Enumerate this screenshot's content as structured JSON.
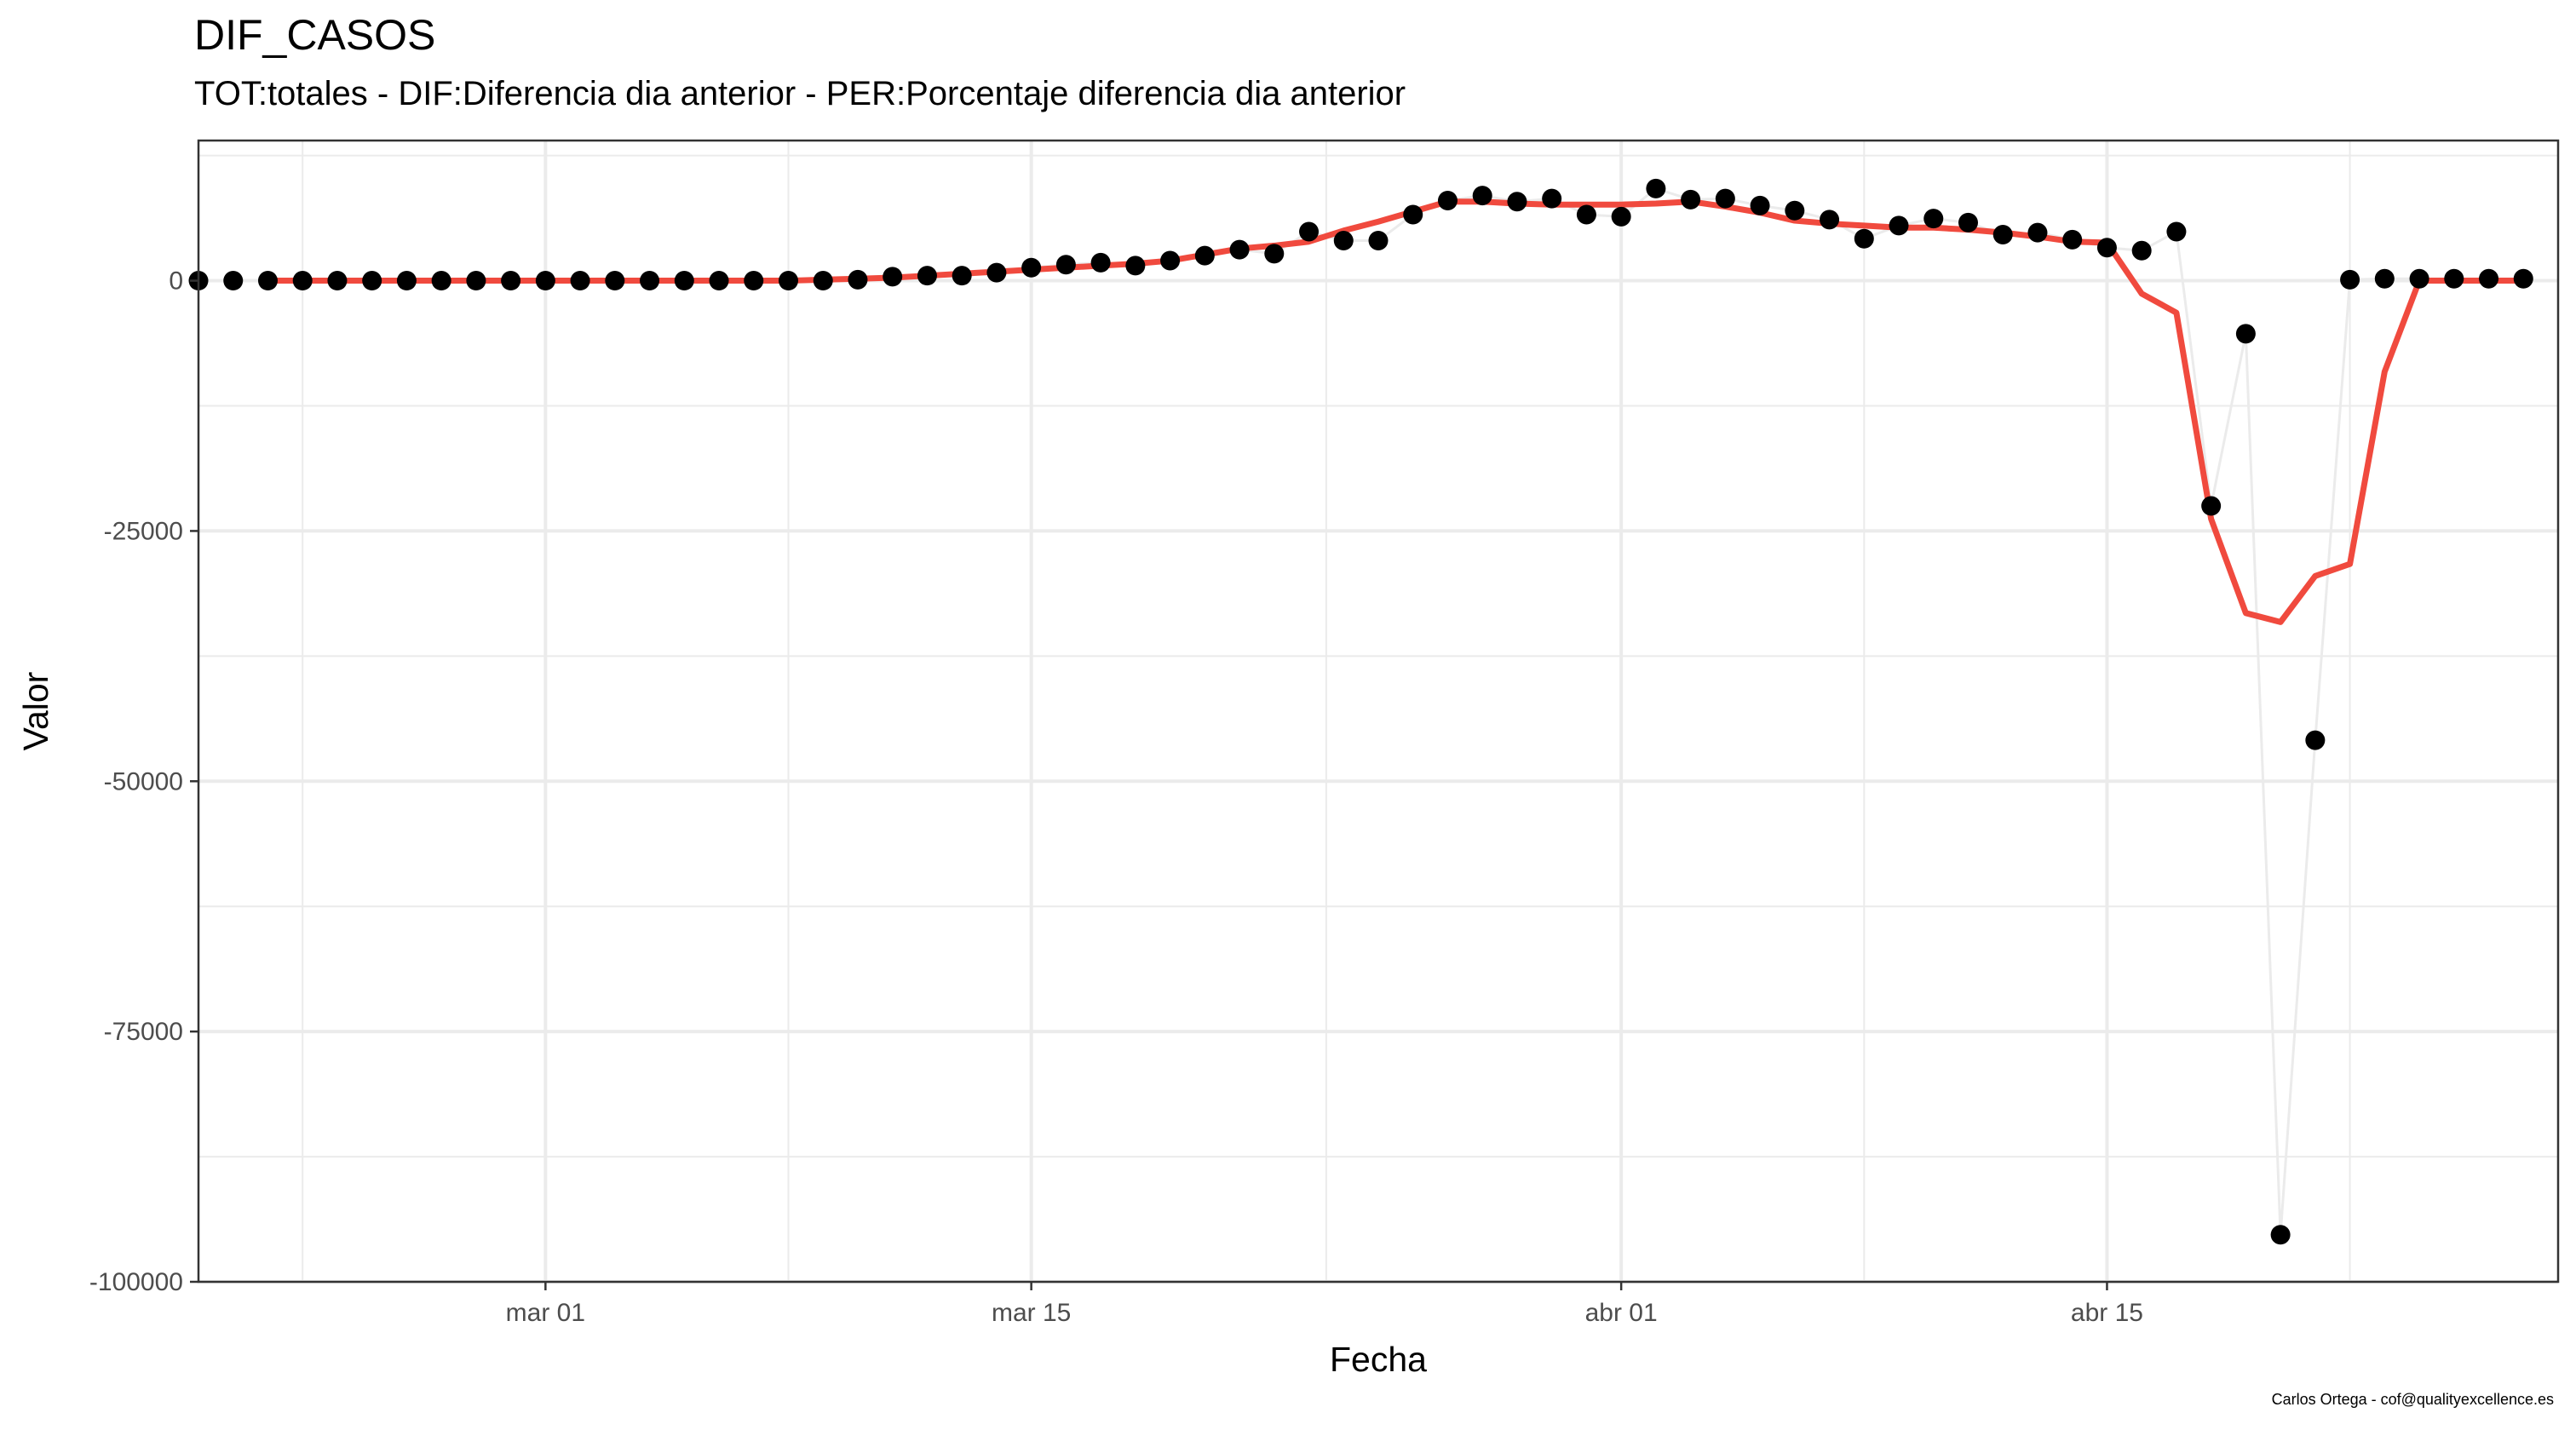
{
  "chart_data": {
    "type": "line",
    "title": "DIF_CASOS",
    "subtitle": "TOT:totales - DIF:Diferencia dia anterior - PER:Porcentaje diferencia dia anterior",
    "xlabel": "Fecha",
    "ylabel": "Valor",
    "caption": "Carlos Ortega - cof@qualityexcellence.es",
    "x_ticks": [
      "mar 01",
      "mar 15",
      "abr 01",
      "abr 15"
    ],
    "x_tick_dates": [
      "2020-03-01",
      "2020-03-15",
      "2020-04-01",
      "2020-04-15"
    ],
    "xlim": [
      "2020-02-20",
      "2020-04-28"
    ],
    "y_ticks": [
      "0",
      "-25000",
      "-50000",
      "-75000",
      "-100000"
    ],
    "y_tick_values": [
      0,
      -25000,
      -50000,
      -75000,
      -100000
    ],
    "ylim": [
      -100000,
      14000
    ],
    "grid": true,
    "legend": "none",
    "colors": {
      "points": "#000000",
      "connecting_line": "#ebebeb",
      "trend_line": "#f04a3e",
      "grid": "#ebebeb",
      "panel_border": "#333333"
    },
    "series": [
      {
        "style": "points-with-thin-line",
        "start_date": "2020-02-20",
        "values": [
          0,
          0,
          0,
          0,
          0,
          0,
          0,
          0,
          0,
          0,
          0,
          0,
          0,
          0,
          0,
          0,
          0,
          0,
          0,
          100,
          400,
          500,
          500,
          800,
          1300,
          1600,
          1800,
          1500,
          2000,
          2500,
          3100,
          2700,
          4900,
          4000,
          4000,
          6600,
          8000,
          8500,
          7900,
          8200,
          6600,
          6400,
          9200,
          8100,
          8200,
          7500,
          7000,
          6100,
          4200,
          5500,
          6200,
          5800,
          4600,
          4800,
          4100,
          3300,
          3000,
          4900,
          -22500,
          -5300,
          -95300,
          -45900,
          100,
          200,
          200,
          200,
          200,
          200
        ]
      },
      {
        "style": "smoothed-line",
        "start_date": "2020-02-22",
        "values": [
          0,
          0,
          0,
          0,
          0,
          0,
          0,
          0,
          0,
          0,
          0,
          0,
          0,
          0,
          0,
          0,
          100,
          200,
          300,
          500,
          700,
          900,
          1100,
          1300,
          1500,
          1700,
          2000,
          2600,
          3200,
          3500,
          3900,
          5000,
          5900,
          6900,
          7900,
          7900,
          7700,
          7600,
          7600,
          7600,
          7700,
          7900,
          7400,
          6800,
          6000,
          5700,
          5500,
          5300,
          5300,
          5100,
          4800,
          4400,
          3900,
          3800,
          -1300,
          -3200,
          -23800,
          -33200,
          -34100,
          -29500,
          -28300,
          -9100,
          0,
          0,
          0,
          0
        ]
      }
    ]
  }
}
